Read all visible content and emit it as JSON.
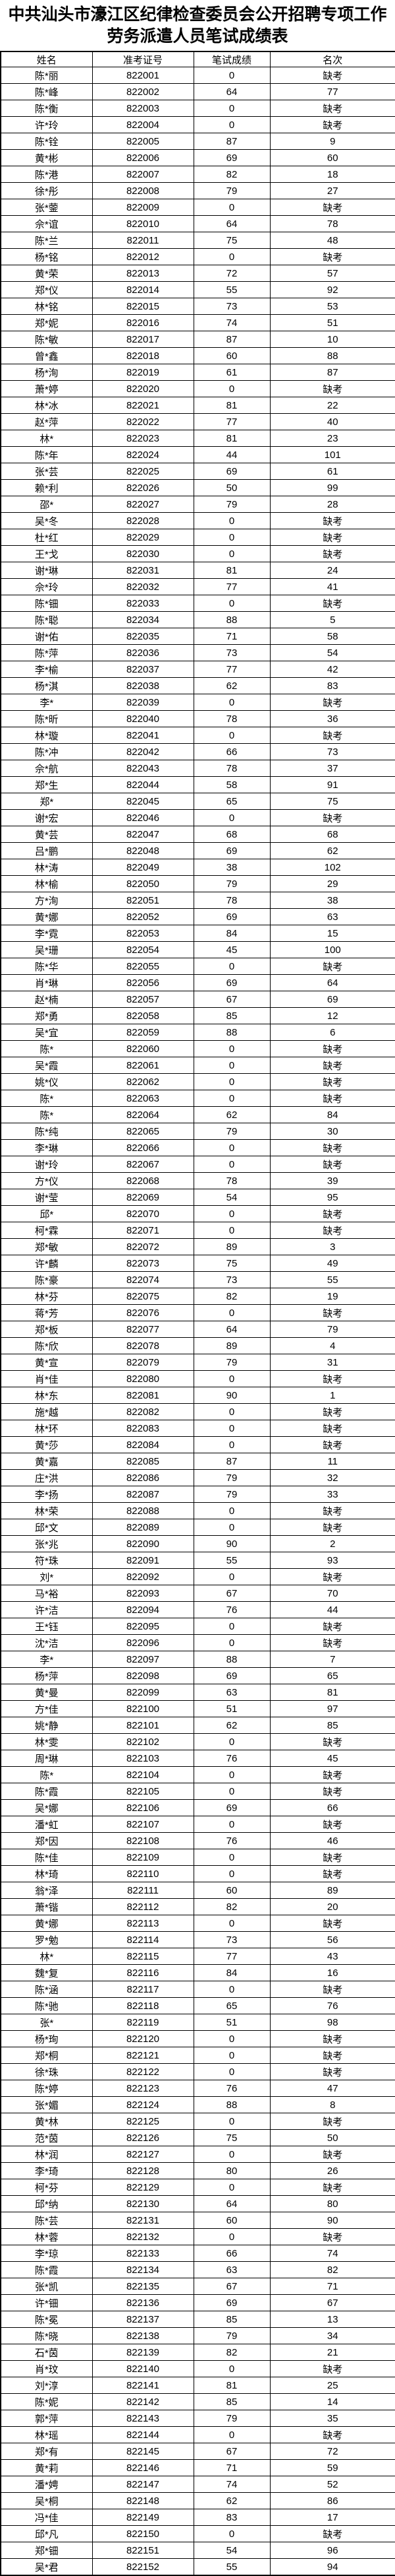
{
  "title": "中共汕头市濠江区纪律检查委员会公开招聘专项工作劳务派遣人员笔试成绩表",
  "table": {
    "columns": [
      "姓名",
      "准考证号",
      "笔试成绩",
      "名次"
    ],
    "absent_label": "缺考",
    "rows": [
      [
        "陈*丽",
        "822001",
        "0",
        "缺考"
      ],
      [
        "陈*峰",
        "822002",
        "64",
        "77"
      ],
      [
        "陈*衡",
        "822003",
        "0",
        "缺考"
      ],
      [
        "许*玲",
        "822004",
        "0",
        "缺考"
      ],
      [
        "陈*铨",
        "822005",
        "87",
        "9"
      ],
      [
        "黄*彬",
        "822006",
        "69",
        "60"
      ],
      [
        "陈*港",
        "822007",
        "82",
        "18"
      ],
      [
        "徐*彤",
        "822008",
        "79",
        "27"
      ],
      [
        "张*蓥",
        "822009",
        "0",
        "缺考"
      ],
      [
        "佘*谊",
        "822010",
        "64",
        "78"
      ],
      [
        "陈*兰",
        "822011",
        "75",
        "48"
      ],
      [
        "杨*铭",
        "822012",
        "0",
        "缺考"
      ],
      [
        "黄*荣",
        "822013",
        "72",
        "57"
      ],
      [
        "郑*仪",
        "822014",
        "55",
        "92"
      ],
      [
        "林*铭",
        "822015",
        "73",
        "53"
      ],
      [
        "郑*妮",
        "822016",
        "74",
        "51"
      ],
      [
        "陈*敏",
        "822017",
        "87",
        "10"
      ],
      [
        "曾*鑫",
        "822018",
        "60",
        "88"
      ],
      [
        "杨*洵",
        "822019",
        "61",
        "87"
      ],
      [
        "萧*婷",
        "822020",
        "0",
        "缺考"
      ],
      [
        "林*冰",
        "822021",
        "81",
        "22"
      ],
      [
        "赵*萍",
        "822022",
        "77",
        "40"
      ],
      [
        "林*",
        "822023",
        "81",
        "23"
      ],
      [
        "陈*年",
        "822024",
        "44",
        "101"
      ],
      [
        "张*芸",
        "822025",
        "69",
        "61"
      ],
      [
        "赖*利",
        "822026",
        "50",
        "99"
      ],
      [
        "邵*",
        "822027",
        "79",
        "28"
      ],
      [
        "吴*冬",
        "822028",
        "0",
        "缺考"
      ],
      [
        "杜*红",
        "822029",
        "0",
        "缺考"
      ],
      [
        "王*戈",
        "822030",
        "0",
        "缺考"
      ],
      [
        "谢*琳",
        "822031",
        "81",
        "24"
      ],
      [
        "佘*玲",
        "822032",
        "77",
        "41"
      ],
      [
        "陈*钿",
        "822033",
        "0",
        "缺考"
      ],
      [
        "陈*聪",
        "822034",
        "88",
        "5"
      ],
      [
        "谢*佑",
        "822035",
        "71",
        "58"
      ],
      [
        "陈*萍",
        "822036",
        "73",
        "54"
      ],
      [
        "李*榆",
        "822037",
        "77",
        "42"
      ],
      [
        "杨*淇",
        "822038",
        "62",
        "83"
      ],
      [
        "李*",
        "822039",
        "0",
        "缺考"
      ],
      [
        "陈*昕",
        "822040",
        "78",
        "36"
      ],
      [
        "林*璇",
        "822041",
        "0",
        "缺考"
      ],
      [
        "陈*冲",
        "822042",
        "66",
        "73"
      ],
      [
        "佘*航",
        "822043",
        "78",
        "37"
      ],
      [
        "郑*生",
        "822044",
        "58",
        "91"
      ],
      [
        "郑*",
        "822045",
        "65",
        "75"
      ],
      [
        "谢*宏",
        "822046",
        "0",
        "缺考"
      ],
      [
        "黄*芸",
        "822047",
        "68",
        "68"
      ],
      [
        "吕*鹏",
        "822048",
        "69",
        "62"
      ],
      [
        "林*涛",
        "822049",
        "38",
        "102"
      ],
      [
        "林*榆",
        "822050",
        "79",
        "29"
      ],
      [
        "方*洵",
        "822051",
        "78",
        "38"
      ],
      [
        "黄*娜",
        "822052",
        "69",
        "63"
      ],
      [
        "李*霓",
        "822053",
        "84",
        "15"
      ],
      [
        "吴*珊",
        "822054",
        "45",
        "100"
      ],
      [
        "陈*华",
        "822055",
        "0",
        "缺考"
      ],
      [
        "肖*琳",
        "822056",
        "69",
        "64"
      ],
      [
        "赵*楠",
        "822057",
        "67",
        "69"
      ],
      [
        "郑*勇",
        "822058",
        "85",
        "12"
      ],
      [
        "吴*宜",
        "822059",
        "88",
        "6"
      ],
      [
        "陈*",
        "822060",
        "0",
        "缺考"
      ],
      [
        "吴*霞",
        "822061",
        "0",
        "缺考"
      ],
      [
        "姚*仪",
        "822062",
        "0",
        "缺考"
      ],
      [
        "陈*",
        "822063",
        "0",
        "缺考"
      ],
      [
        "陈*",
        "822064",
        "62",
        "84"
      ],
      [
        "陈*纯",
        "822065",
        "79",
        "30"
      ],
      [
        "李*琳",
        "822066",
        "0",
        "缺考"
      ],
      [
        "谢*玲",
        "822067",
        "0",
        "缺考"
      ],
      [
        "方*仪",
        "822068",
        "78",
        "39"
      ],
      [
        "谢*莹",
        "822069",
        "54",
        "95"
      ],
      [
        "邱*",
        "822070",
        "0",
        "缺考"
      ],
      [
        "柯*霖",
        "822071",
        "0",
        "缺考"
      ],
      [
        "郑*敏",
        "822072",
        "89",
        "3"
      ],
      [
        "许*麟",
        "822073",
        "75",
        "49"
      ],
      [
        "陈*豪",
        "822074",
        "73",
        "55"
      ],
      [
        "林*芬",
        "822075",
        "82",
        "19"
      ],
      [
        "蒋*芳",
        "822076",
        "0",
        "缺考"
      ],
      [
        "郑*板",
        "822077",
        "64",
        "79"
      ],
      [
        "陈*欣",
        "822078",
        "89",
        "4"
      ],
      [
        "黄*宣",
        "822079",
        "79",
        "31"
      ],
      [
        "肖*佳",
        "822080",
        "0",
        "缺考"
      ],
      [
        "林*东",
        "822081",
        "90",
        "1"
      ],
      [
        "施*越",
        "822082",
        "0",
        "缺考"
      ],
      [
        "林*环",
        "822083",
        "0",
        "缺考"
      ],
      [
        "黄*莎",
        "822084",
        "0",
        "缺考"
      ],
      [
        "黄*嘉",
        "822085",
        "87",
        "11"
      ],
      [
        "庄*洪",
        "822086",
        "79",
        "32"
      ],
      [
        "李*扬",
        "822087",
        "79",
        "33"
      ],
      [
        "林*荣",
        "822088",
        "0",
        "缺考"
      ],
      [
        "邱*文",
        "822089",
        "0",
        "缺考"
      ],
      [
        "张*兆",
        "822090",
        "90",
        "2"
      ],
      [
        "符*珠",
        "822091",
        "55",
        "93"
      ],
      [
        "刘*",
        "822092",
        "0",
        "缺考"
      ],
      [
        "马*裕",
        "822093",
        "67",
        "70"
      ],
      [
        "许*洁",
        "822094",
        "76",
        "44"
      ],
      [
        "王*钰",
        "822095",
        "0",
        "缺考"
      ],
      [
        "沈*洁",
        "822096",
        "0",
        "缺考"
      ],
      [
        "李*",
        "822097",
        "88",
        "7"
      ],
      [
        "杨*萍",
        "822098",
        "69",
        "65"
      ],
      [
        "黄*曼",
        "822099",
        "63",
        "81"
      ],
      [
        "方*佳",
        "822100",
        "51",
        "97"
      ],
      [
        "姚*静",
        "822101",
        "62",
        "85"
      ],
      [
        "林*雯",
        "822102",
        "0",
        "缺考"
      ],
      [
        "周*琳",
        "822103",
        "76",
        "45"
      ],
      [
        "陈*",
        "822104",
        "0",
        "缺考"
      ],
      [
        "陈*霞",
        "822105",
        "0",
        "缺考"
      ],
      [
        "吴*娜",
        "822106",
        "69",
        "66"
      ],
      [
        "潘*虹",
        "822107",
        "0",
        "缺考"
      ],
      [
        "郑*因",
        "822108",
        "76",
        "46"
      ],
      [
        "陈*佳",
        "822109",
        "0",
        "缺考"
      ],
      [
        "林*琦",
        "822110",
        "0",
        "缺考"
      ],
      [
        "翁*泽",
        "822111",
        "60",
        "89"
      ],
      [
        "萧*锴",
        "822112",
        "82",
        "20"
      ],
      [
        "黄*娜",
        "822113",
        "0",
        "缺考"
      ],
      [
        "罗*勉",
        "822114",
        "73",
        "56"
      ],
      [
        "林*",
        "822115",
        "77",
        "43"
      ],
      [
        "魏*复",
        "822116",
        "84",
        "16"
      ],
      [
        "陈*涵",
        "822117",
        "0",
        "缺考"
      ],
      [
        "陈*驰",
        "822118",
        "65",
        "76"
      ],
      [
        "张*",
        "822119",
        "51",
        "98"
      ],
      [
        "杨*珣",
        "822120",
        "0",
        "缺考"
      ],
      [
        "郑*桐",
        "822121",
        "0",
        "缺考"
      ],
      [
        "徐*珠",
        "822122",
        "0",
        "缺考"
      ],
      [
        "陈*婷",
        "822123",
        "76",
        "47"
      ],
      [
        "张*媚",
        "822124",
        "88",
        "8"
      ],
      [
        "黄*林",
        "822125",
        "0",
        "缺考"
      ],
      [
        "范*茵",
        "822126",
        "75",
        "50"
      ],
      [
        "林*润",
        "822127",
        "0",
        "缺考"
      ],
      [
        "李*琦",
        "822128",
        "80",
        "26"
      ],
      [
        "柯*芬",
        "822129",
        "0",
        "缺考"
      ],
      [
        "邱*纳",
        "822130",
        "64",
        "80"
      ],
      [
        "陈*芸",
        "822131",
        "60",
        "90"
      ],
      [
        "林*蓉",
        "822132",
        "0",
        "缺考"
      ],
      [
        "李*琼",
        "822133",
        "66",
        "74"
      ],
      [
        "陈*霞",
        "822134",
        "63",
        "82"
      ],
      [
        "张*凯",
        "822135",
        "67",
        "71"
      ],
      [
        "许*钿",
        "822136",
        "69",
        "67"
      ],
      [
        "陈*冕",
        "822137",
        "85",
        "13"
      ],
      [
        "陈*晓",
        "822138",
        "79",
        "34"
      ],
      [
        "石*茵",
        "822139",
        "82",
        "21"
      ],
      [
        "肖*玟",
        "822140",
        "0",
        "缺考"
      ],
      [
        "刘*淳",
        "822141",
        "81",
        "25"
      ],
      [
        "陈*妮",
        "822142",
        "85",
        "14"
      ],
      [
        "郭*萍",
        "822143",
        "79",
        "35"
      ],
      [
        "林*瑶",
        "822144",
        "0",
        "缺考"
      ],
      [
        "郑*有",
        "822145",
        "67",
        "72"
      ],
      [
        "黄*莉",
        "822146",
        "71",
        "59"
      ],
      [
        "潘*娉",
        "822147",
        "74",
        "52"
      ],
      [
        "吴*桐",
        "822148",
        "62",
        "86"
      ],
      [
        "冯*佳",
        "822149",
        "83",
        "17"
      ],
      [
        "邱*凡",
        "822150",
        "0",
        "缺考"
      ],
      [
        "郑*钿",
        "822151",
        "54",
        "96"
      ],
      [
        "吴*君",
        "822152",
        "55",
        "94"
      ]
    ]
  }
}
